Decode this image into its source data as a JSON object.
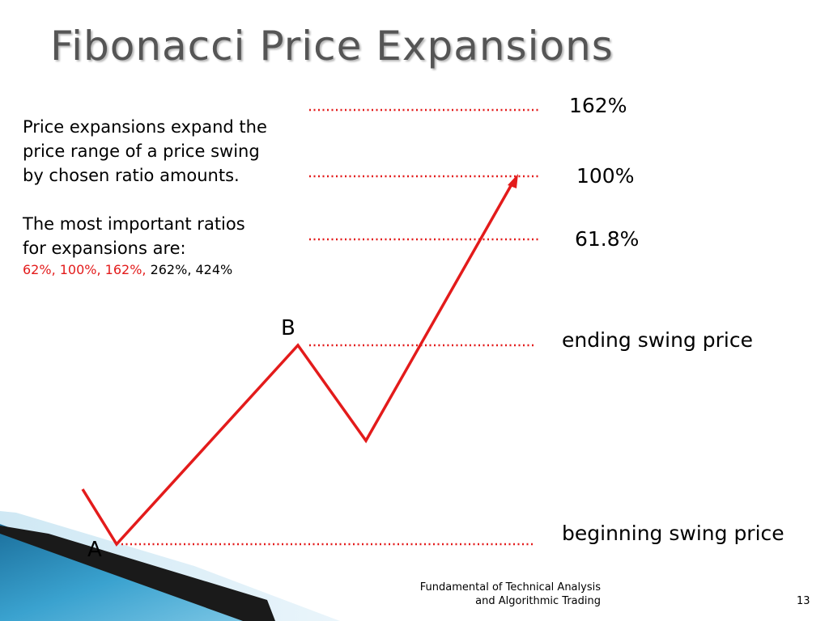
{
  "title": "Fibonacci Price Expansions",
  "description": {
    "paragraph1": "Price expansions expand the price range of a price swing by chosen ratio amounts.",
    "paragraph2": "The most important ratios for expansions are:",
    "ratios_highlighted": "62%, 100%, 162%,",
    "ratios_other": " 262%, 424%"
  },
  "levels": {
    "l162": "162%",
    "l100": "100%",
    "l618": "61.8%",
    "ending": "ending swing price",
    "beginning": "beginning swing price"
  },
  "points": {
    "a": "A",
    "b": "B"
  },
  "footer": {
    "line1": "Fundamental of Technical Analysis",
    "line2": "and Algorithmic Trading",
    "page": "13"
  },
  "colors": {
    "accent_red": "#e31b1b",
    "title_gray": "#555555",
    "corner_blue": "#3a9fcc"
  }
}
